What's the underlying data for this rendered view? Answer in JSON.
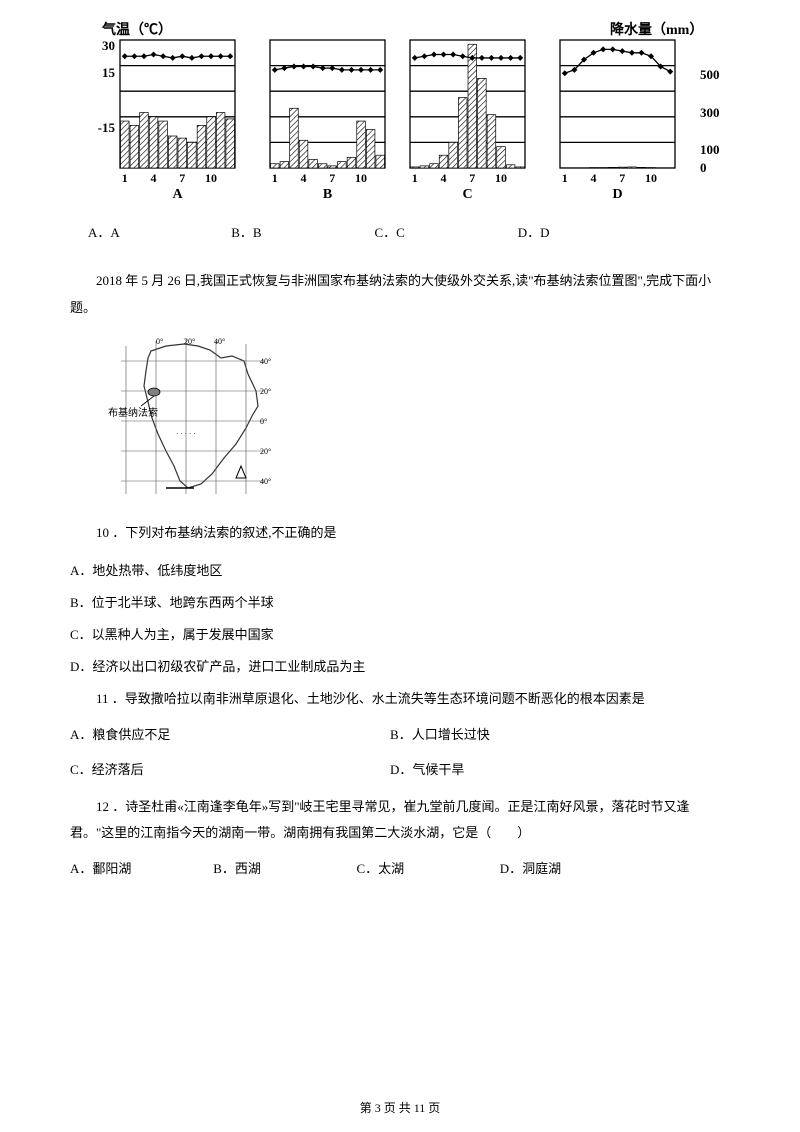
{
  "charts": {
    "left_axis_title": "气温（℃）",
    "right_axis_title": "降水量（mm）",
    "temp_ticks": [
      "30",
      "15",
      "-15"
    ],
    "precip_ticks": [
      "500",
      "300",
      "100",
      "0"
    ],
    "x_ticks": [
      "1",
      "4",
      "7",
      "10"
    ],
    "labels": [
      "A",
      "B",
      "C",
      "D"
    ],
    "axis_color": "#000000",
    "bar_fill": "#ffffff",
    "hatch_color": "#000000",
    "line_width": 1,
    "A": {
      "temp": [
        28,
        28,
        28,
        29,
        28,
        27,
        28,
        27,
        28,
        28,
        28,
        28
      ],
      "precip": [
        220,
        200,
        260,
        240,
        220,
        150,
        140,
        120,
        200,
        240,
        260,
        230
      ],
      "precip_max": 600
    },
    "B": {
      "temp": [
        20,
        21,
        22,
        22,
        22,
        21,
        21,
        20,
        20,
        20,
        20,
        20
      ],
      "precip": [
        20,
        30,
        280,
        130,
        40,
        20,
        10,
        30,
        50,
        220,
        180,
        60
      ],
      "precip_max": 600
    },
    "C": {
      "temp": [
        27,
        28,
        29,
        29,
        29,
        28,
        27,
        27,
        27,
        27,
        27,
        27
      ],
      "precip": [
        5,
        10,
        20,
        60,
        120,
        330,
        580,
        420,
        250,
        100,
        15,
        5
      ],
      "precip_max": 600
    },
    "D": {
      "temp": [
        18,
        20,
        26,
        30,
        32,
        32,
        31,
        30,
        30,
        28,
        22,
        19
      ],
      "precip": [
        1,
        1,
        1,
        2,
        2,
        3,
        4,
        5,
        3,
        2,
        1,
        1
      ],
      "precip_max": 600
    }
  },
  "options_row": {
    "a": "A．A",
    "b": "B．B",
    "c": "C．C",
    "d": "D．D"
  },
  "intro": "2018 年 5 月 26 日,我国正式恢复与非洲国家布基纳法索的大使级外交关系,读\"布基纳法索位置图\",完成下面小题。",
  "map_caption": "布基纳法索",
  "q10": {
    "stem": "10 ．下列对布基纳法索的叙述,不正确的是",
    "a": "A．地处热带、低纬度地区",
    "b": "B．位于北半球、地跨东西两个半球",
    "c": "C．以黑种人为主，属于发展中国家",
    "d": "D．经济以出口初级农矿产品，进口工业制成品为主"
  },
  "q11": {
    "stem": "11 ．导致撒哈拉以南非洲草原退化、土地沙化、水土流失等生态环境问题不断恶化的根本因素是",
    "a": "A．粮食供应不足",
    "b": "B．人口增长过快",
    "c": "C．经济落后",
    "d": "D．气候干旱"
  },
  "q12": {
    "stem": "12 ．诗圣杜甫«江南逢李龟年»写到\"岐王宅里寻常见，崔九堂前几度闻。正是江南好风景，落花时节又逢君。\"这里的江南指今天的湖南一带。湖南拥有我国第二大淡水湖，它是（　　）",
    "a": "A．鄱阳湖",
    "b": "B．西湖",
    "c": "C．太湖",
    "d": "D．洞庭湖"
  },
  "footer": "第 3 页 共 11 页"
}
